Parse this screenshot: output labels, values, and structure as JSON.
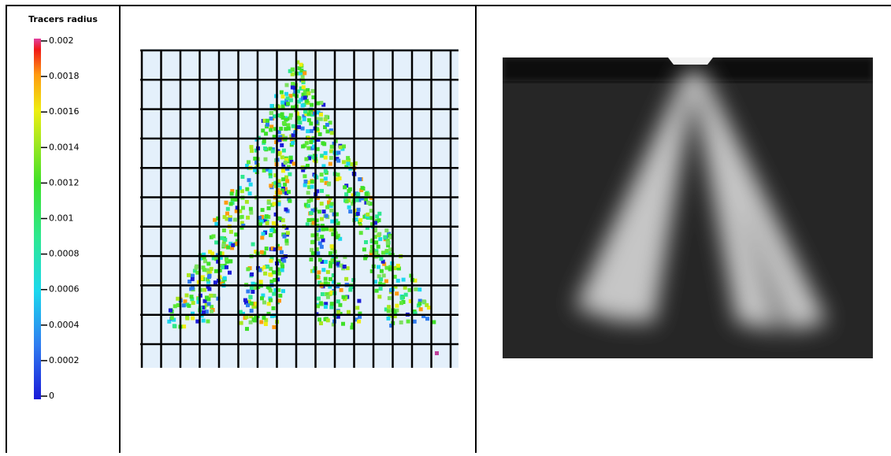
{
  "colorbar": {
    "title": "Tracers radius",
    "range": [
      0,
      0.002
    ],
    "ticks": [
      0.002,
      0.0018,
      0.0016,
      0.0014,
      0.0012,
      0.001,
      0.0008,
      0.0006,
      0.0004,
      0.0002,
      0
    ]
  }
}
